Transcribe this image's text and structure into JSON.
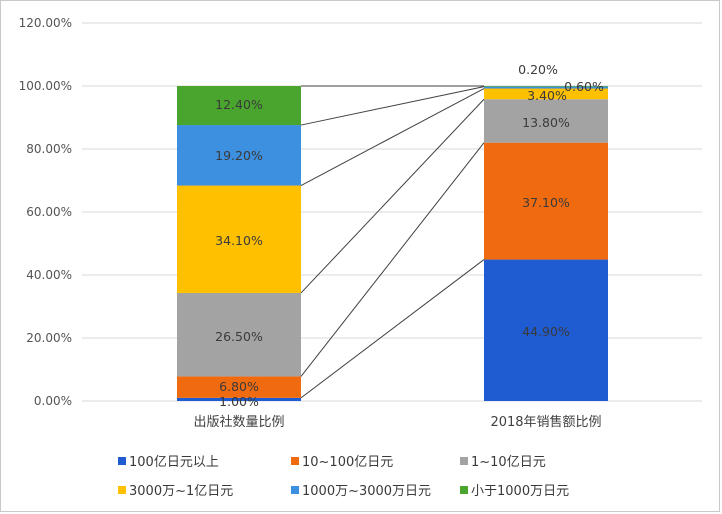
{
  "chart_data": {
    "type": "bar",
    "stacked": true,
    "categories": [
      "出版社数量比例",
      "2018年销售额比例"
    ],
    "yticks": [
      "0.00%",
      "20.00%",
      "40.00%",
      "60.00%",
      "80.00%",
      "100.00%",
      "120.00%"
    ],
    "ylim": [
      0,
      120
    ],
    "grid": true,
    "legend_position": "bottom",
    "series": [
      {
        "name": "100亿日元以上",
        "color": "#1f5bd1",
        "values": [
          1.0,
          44.9
        ],
        "labels": [
          "1.00%",
          "44.90%"
        ]
      },
      {
        "name": "10~100亿日元",
        "color": "#f06b10",
        "values": [
          6.8,
          37.1
        ],
        "labels": [
          "6.80%",
          "37.10%"
        ]
      },
      {
        "name": "1~10亿日元",
        "color": "#a3a3a3",
        "values": [
          26.5,
          13.8
        ],
        "labels": [
          "26.50%",
          "13.80%"
        ]
      },
      {
        "name": "3000万~1亿日元",
        "color": "#ffc000",
        "values": [
          34.1,
          3.4
        ],
        "labels": [
          "34.10%",
          "3.40%"
        ]
      },
      {
        "name": "1000万~3000万日元",
        "color": "#3d8fe0",
        "values": [
          19.2,
          0.6
        ],
        "labels": [
          "19.20%",
          "0.60%"
        ]
      },
      {
        "name": "小于1000万日元",
        "color": "#4aa52f",
        "values": [
          12.4,
          0.2
        ],
        "labels": [
          "12.40%",
          "0.20%"
        ]
      }
    ]
  }
}
